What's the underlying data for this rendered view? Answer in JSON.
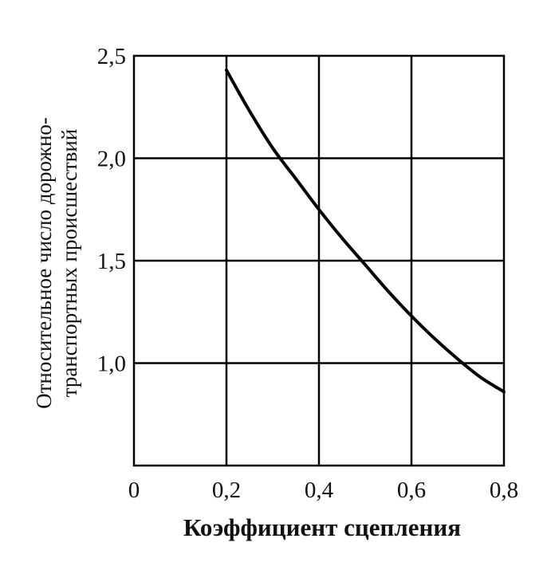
{
  "chart_data": {
    "type": "line",
    "xlabel": "Коэффициент сцепления",
    "ylabel_lines": [
      "Относительное число дорожно-",
      "транспортных происшествий"
    ],
    "x_ticks": [
      "0",
      "0,2",
      "0,4",
      "0,6",
      "0,8"
    ],
    "y_ticks": [
      "1,0",
      "1,5",
      "2,0",
      "2,5"
    ],
    "xlim": [
      0,
      0.8
    ],
    "ylim": [
      0.5,
      2.5
    ],
    "grid": true,
    "series": [
      {
        "x": [
          0.2,
          0.25,
          0.3,
          0.35,
          0.4,
          0.45,
          0.5,
          0.55,
          0.6,
          0.65,
          0.7,
          0.75,
          0.8
        ],
        "values": [
          2.43,
          2.23,
          2.05,
          1.9,
          1.75,
          1.61,
          1.48,
          1.35,
          1.23,
          1.12,
          1.02,
          0.93,
          0.86
        ]
      }
    ],
    "colors": {
      "line": "#000000",
      "grid": "#000000"
    }
  }
}
